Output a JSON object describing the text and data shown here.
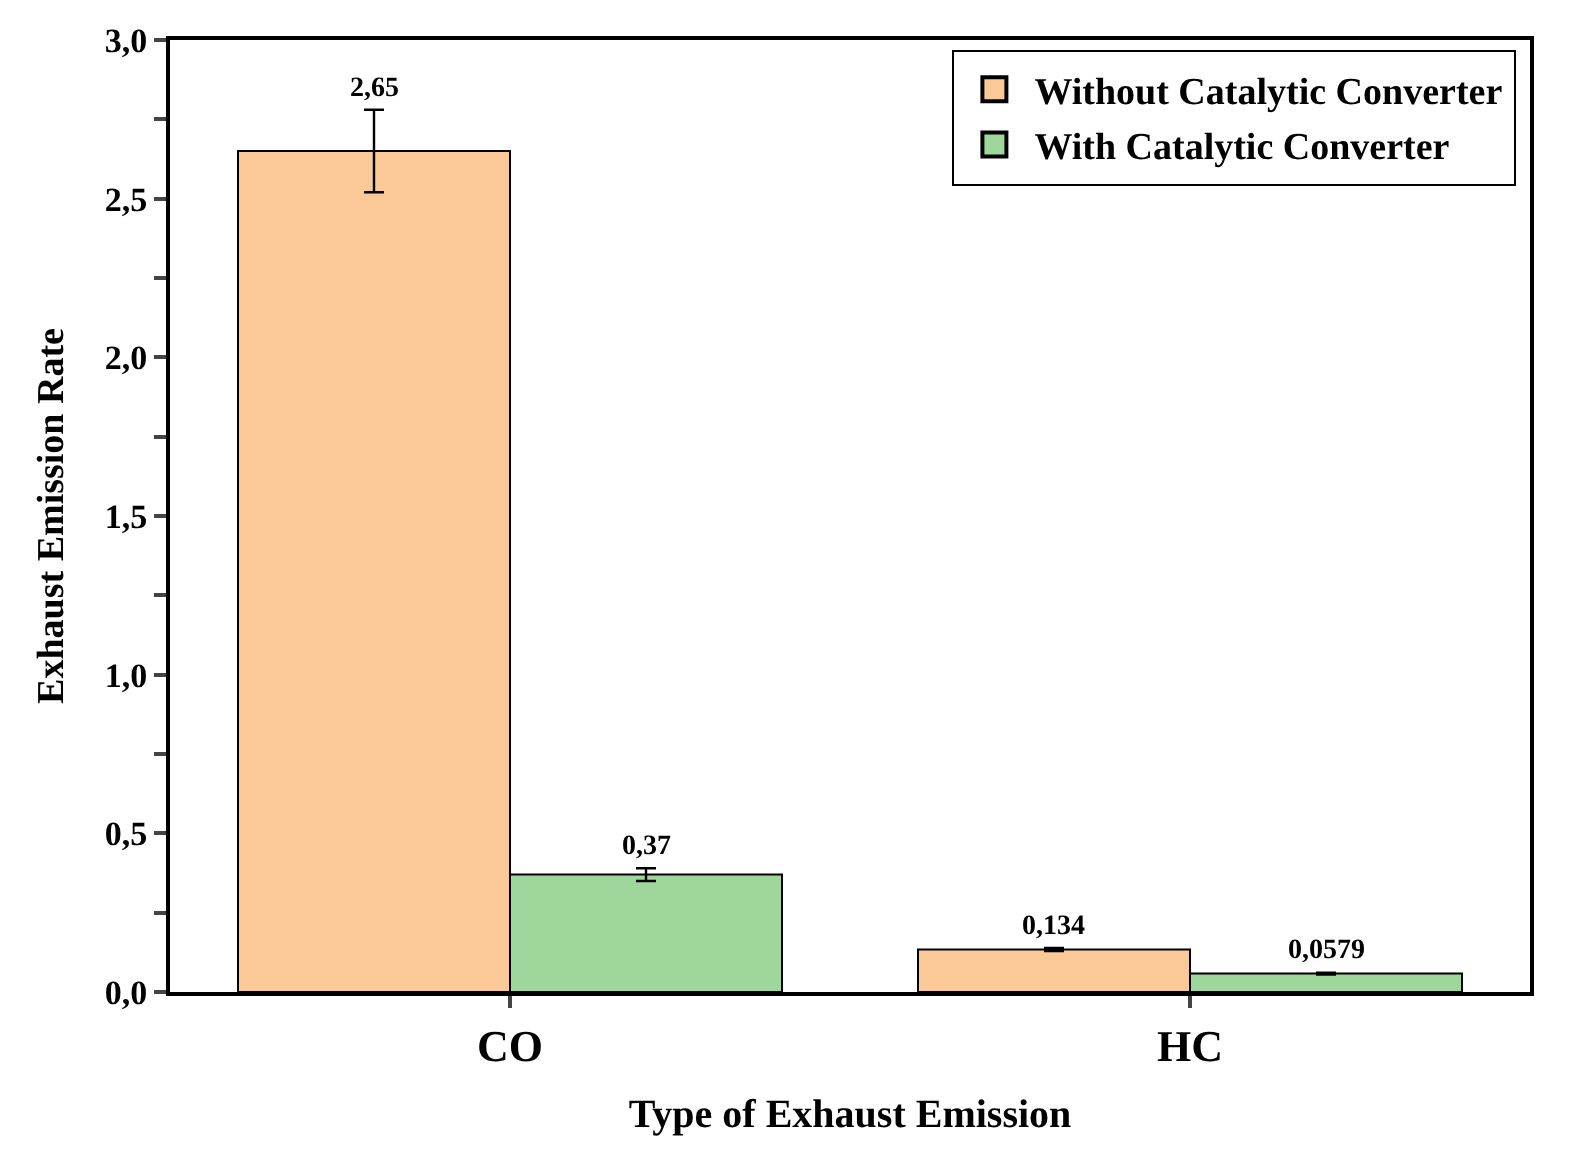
{
  "chart_data": {
    "type": "bar",
    "xlabel": "Type of Exhaust Emission",
    "ylabel": "Exhaust Emission Rate",
    "categories": [
      "CO",
      "HC"
    ],
    "series": [
      {
        "name": "Without Catalytic Converter",
        "color": "#fbc897",
        "values": [
          2.65,
          0.134
        ],
        "errors": [
          0.13,
          0.005
        ],
        "value_labels": [
          "2,65",
          "0,134"
        ]
      },
      {
        "name": "With Catalytic Converter",
        "color": "#9ed69c",
        "values": [
          0.37,
          0.0579
        ],
        "errors": [
          0.02,
          0.003
        ],
        "value_labels": [
          "0,37",
          "0,0579"
        ]
      }
    ],
    "ylim": [
      0,
      3
    ],
    "yticks": [
      {
        "value": 0,
        "label": "0,0"
      },
      {
        "value": 0.25,
        "label": null
      },
      {
        "value": 0.5,
        "label": "0,5"
      },
      {
        "value": 0.75,
        "label": null
      },
      {
        "value": 1,
        "label": "1,0"
      },
      {
        "value": 1.25,
        "label": null
      },
      {
        "value": 1.5,
        "label": "1,5"
      },
      {
        "value": 1.75,
        "label": null
      },
      {
        "value": 2,
        "label": "2,0"
      },
      {
        "value": 2.25,
        "label": null
      },
      {
        "value": 2.5,
        "label": "2,5"
      },
      {
        "value": 2.75,
        "label": null
      },
      {
        "value": 3,
        "label": "3,0"
      }
    ],
    "legend": "top right"
  }
}
